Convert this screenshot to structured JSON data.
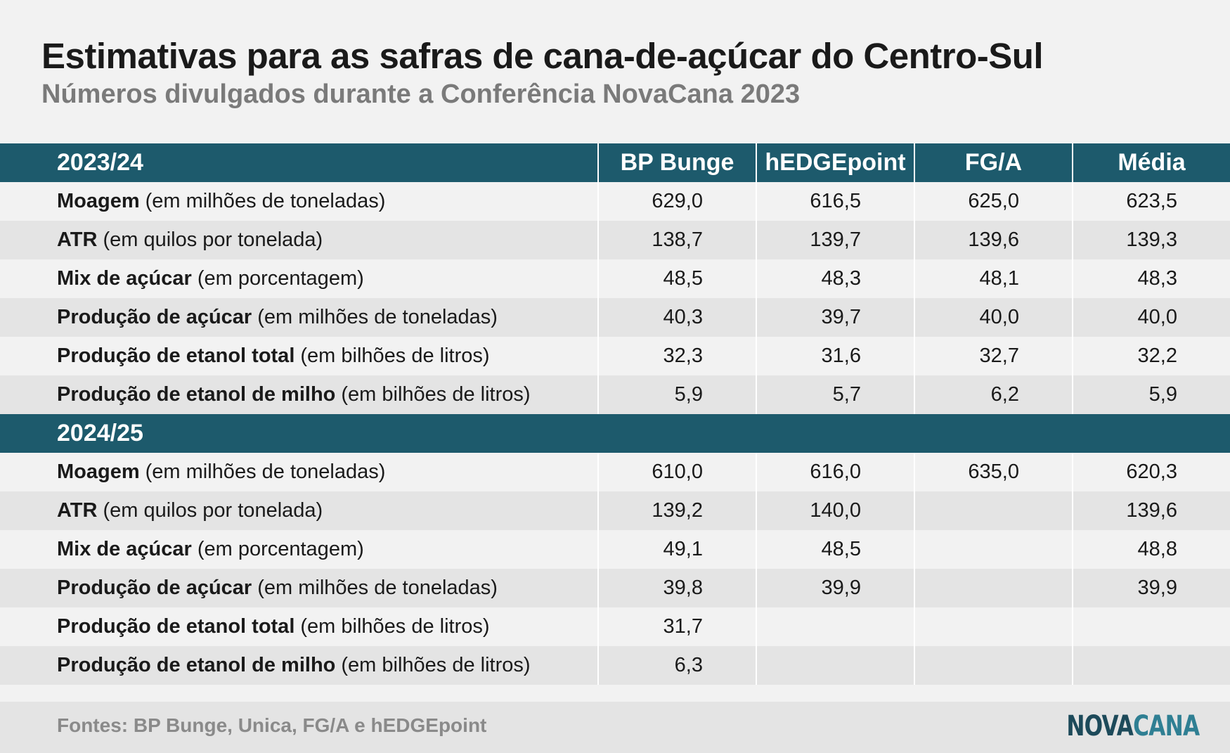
{
  "title": "Estimativas para as safras de cana-de-açúcar do Centro-Sul",
  "subtitle": "Números divulgados durante a Conferência NovaCana 2023",
  "colors": {
    "header_bg": "#1d5a6c",
    "row_light": "#f2f2f2",
    "row_dark": "#e4e4e4"
  },
  "chart_data": {
    "type": "table",
    "columns": [
      "BP Bunge",
      "hEDGEpoint",
      "FG/A",
      "Média"
    ],
    "sections": [
      {
        "season": "2023/24",
        "rows": [
          {
            "label_bold": "Moagem",
            "label_unit": "(em milhões de toneladas)",
            "values": [
              "629,0",
              "616,5",
              "625,0",
              "623,5"
            ]
          },
          {
            "label_bold": "ATR",
            "label_unit": "(em quilos por tonelada)",
            "values": [
              "138,7",
              "139,7",
              "139,6",
              "139,3"
            ]
          },
          {
            "label_bold": "Mix de açúcar",
            "label_unit": "(em porcentagem)",
            "values": [
              "48,5",
              "48,3",
              "48,1",
              "48,3"
            ]
          },
          {
            "label_bold": "Produção de açúcar",
            "label_unit": "(em milhões de toneladas)",
            "values": [
              "40,3",
              "39,7",
              "40,0",
              "40,0"
            ]
          },
          {
            "label_bold": "Produção de etanol total",
            "label_unit": "(em bilhões de litros)",
            "values": [
              "32,3",
              "31,6",
              "32,7",
              "32,2"
            ]
          },
          {
            "label_bold": "Produção de etanol de milho",
            "label_unit": "(em bilhões de litros)",
            "values": [
              "5,9",
              "5,7",
              "6,2",
              "5,9"
            ]
          }
        ]
      },
      {
        "season": "2024/25",
        "rows": [
          {
            "label_bold": "Moagem",
            "label_unit": "(em milhões de toneladas)",
            "values": [
              "610,0",
              "616,0",
              "635,0",
              "620,3"
            ]
          },
          {
            "label_bold": "ATR",
            "label_unit": "(em quilos por tonelada)",
            "values": [
              "139,2",
              "140,0",
              "",
              "139,6"
            ]
          },
          {
            "label_bold": "Mix de açúcar",
            "label_unit": "(em porcentagem)",
            "values": [
              "49,1",
              "48,5",
              "",
              "48,8"
            ]
          },
          {
            "label_bold": "Produção de açúcar",
            "label_unit": "(em milhões de toneladas)",
            "values": [
              "39,8",
              "39,9",
              "",
              "39,9"
            ]
          },
          {
            "label_bold": "Produção de etanol total",
            "label_unit": "(em bilhões de litros)",
            "values": [
              "31,7",
              "",
              "",
              ""
            ]
          },
          {
            "label_bold": "Produção de etanol de milho",
            "label_unit": "(em bilhões de litros)",
            "values": [
              "6,3",
              "",
              "",
              ""
            ]
          }
        ]
      }
    ]
  },
  "footer": {
    "source": "Fontes: BP Bunge, Unica, FG/A e hEDGEpoint",
    "logo_part1": "NOVA",
    "logo_part2": "CANA"
  }
}
